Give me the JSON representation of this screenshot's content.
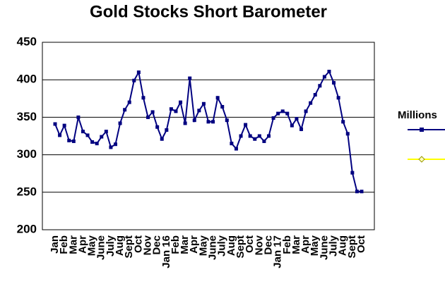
{
  "chart_data": {
    "type": "line",
    "title": "Gold Stocks Short Barometer",
    "legend_title": "Millions",
    "categories": [
      "Jan",
      null,
      "Feb",
      null,
      "Mar",
      null,
      "Apr",
      null,
      "May",
      null,
      "June",
      null,
      "July",
      null,
      "Aug",
      null,
      "Sept",
      null,
      "Oct",
      null,
      "Nov",
      null,
      "Dec",
      null,
      "Jan 16",
      null,
      "Feb",
      null,
      "Mar",
      null,
      "Apr",
      null,
      "May",
      null,
      "June",
      null,
      "July",
      null,
      "Aug",
      null,
      "Sept",
      null,
      "Oct",
      null,
      "Nov",
      null,
      "Dec",
      null,
      "Jan 17",
      null,
      "Feb",
      null,
      "Mar",
      null,
      "Apr",
      null,
      "May",
      null,
      "June",
      null,
      "July",
      null,
      "Aug",
      null,
      "Sept",
      null,
      "Oct"
    ],
    "series": [
      {
        "color": "#000080",
        "values": [
          341,
          326,
          339,
          319,
          318,
          350,
          331,
          326,
          317,
          315,
          324,
          331,
          310,
          314,
          342,
          360,
          370,
          399,
          410,
          376,
          350,
          357,
          337,
          321,
          333,
          361,
          358,
          370,
          342,
          402,
          346,
          359,
          368,
          344,
          344,
          376,
          364,
          346,
          315,
          308,
          325,
          340,
          325,
          321,
          325,
          318,
          325,
          349,
          355,
          358,
          355,
          339,
          348,
          334,
          358,
          369,
          380,
          392,
          404,
          411,
          396,
          376,
          344,
          328,
          276,
          251,
          251
        ]
      }
    ],
    "ylim": [
      200,
      450
    ],
    "yticks": [
      200,
      250,
      300,
      350,
      400,
      450
    ],
    "grid": true
  }
}
